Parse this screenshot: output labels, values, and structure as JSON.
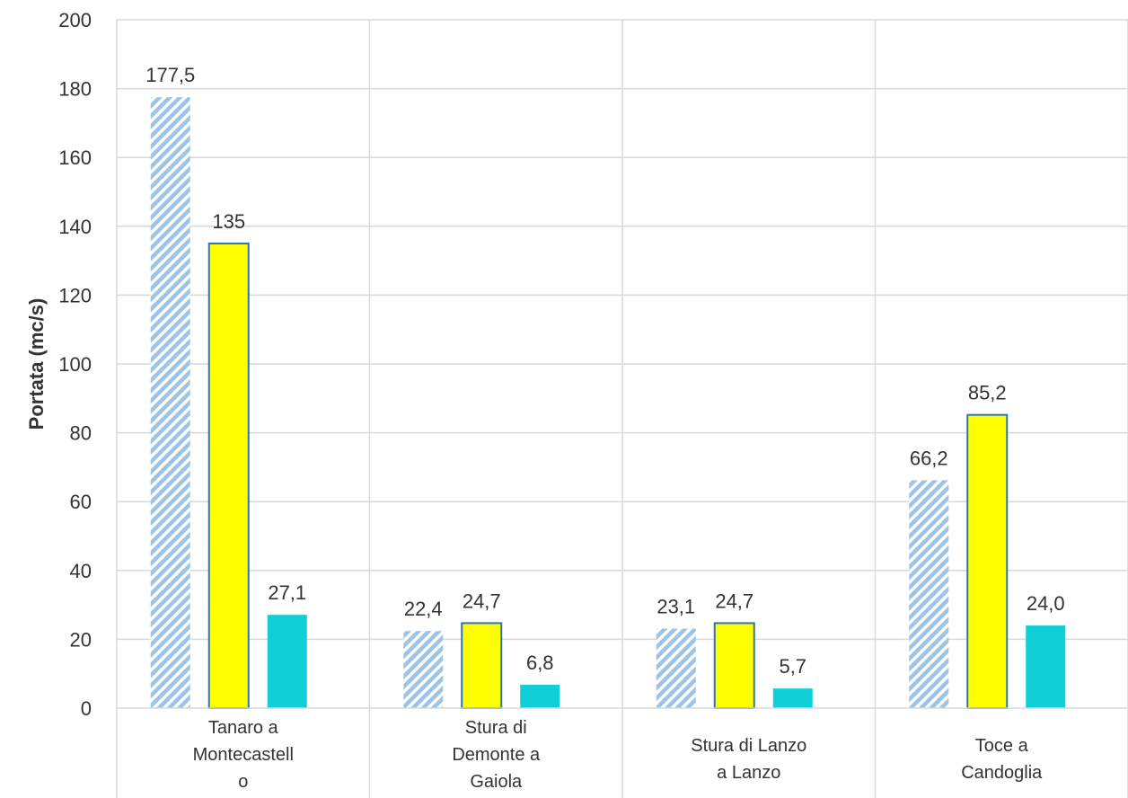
{
  "chart_data": {
    "type": "bar",
    "title": "",
    "xlabel": "",
    "ylabel": "Portata (mc/s)",
    "ylim": [
      0,
      200
    ],
    "yticks": [
      0,
      20,
      40,
      60,
      80,
      100,
      120,
      140,
      160,
      180,
      200
    ],
    "grid": true,
    "legend": "none",
    "categories": [
      [
        "Tanaro a",
        "Montecastell",
        "o"
      ],
      [
        "Stura di",
        "Demonte a",
        "Gaiola"
      ],
      [
        "Stura di Lanzo",
        "a Lanzo"
      ],
      [
        "Toce a",
        "Candoglia"
      ]
    ],
    "series": [
      {
        "values": [
          177.5,
          22.4,
          23.1,
          66.2
        ],
        "labels": [
          "177,5",
          "22,4",
          "23,1",
          "66,2"
        ],
        "color": "#9dc3e6",
        "pattern": "diagonal-hatch"
      },
      {
        "values": [
          135,
          24.7,
          24.7,
          85.2
        ],
        "labels": [
          "135",
          "24,7",
          "24,7",
          "85,2"
        ],
        "color": "#ffff00",
        "border": "#2e75b6"
      },
      {
        "values": [
          27.1,
          6.8,
          5.7,
          24.0
        ],
        "labels": [
          "27,1",
          "6,8",
          "5,7",
          "24,0"
        ],
        "color": "#10cfd6"
      }
    ]
  }
}
